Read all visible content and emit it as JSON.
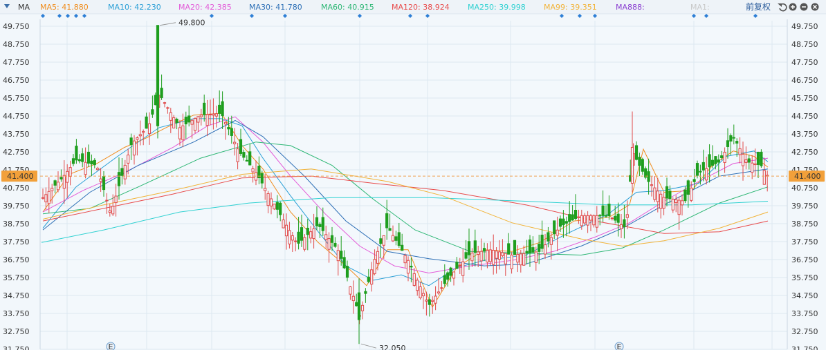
{
  "indicator": {
    "label": "MA",
    "icon": "ma-dropdown-icon"
  },
  "toolbar": {
    "adjust_label": "前复权",
    "icons": [
      "undo-icon",
      "zoom-in-icon",
      "zoom-out-icon",
      "close-icon"
    ]
  },
  "ma_legend": [
    {
      "text": "MA5: 41.880",
      "color": "#f08c1c"
    },
    {
      "text": "MA10: 42.230",
      "color": "#2a9fd6"
    },
    {
      "text": "MA20: 42.385",
      "color": "#e35ad8"
    },
    {
      "text": "MA30: 41.780",
      "color": "#2d6fb6"
    },
    {
      "text": "MA60: 40.915",
      "color": "#2bb673"
    },
    {
      "text": "MA120: 38.924",
      "color": "#e84a4a"
    },
    {
      "text": "MA250: 39.998",
      "color": "#2fd1d1"
    },
    {
      "text": "MA99: 39.351",
      "color": "#f2b338"
    },
    {
      "text": "MA888:",
      "color": "#8a3fd1"
    },
    {
      "text": "MA1:",
      "color": "#c8c8c8"
    }
  ],
  "chart_data": {
    "type": "candlestick",
    "ylim": [
      31.75,
      49.75
    ],
    "y_ticks": [
      "49.750",
      "48.750",
      "47.750",
      "46.750",
      "45.750",
      "44.750",
      "43.750",
      "42.750",
      "41.750",
      "40.750",
      "39.750",
      "38.750",
      "37.750",
      "36.750",
      "35.750",
      "34.750",
      "33.750",
      "32.750",
      "31.750"
    ],
    "current_price": "41.400",
    "annotations": [
      {
        "text": "49.800",
        "value": 49.8
      },
      {
        "text": "32.050",
        "value": 32.05
      }
    ],
    "event_markers": [
      "E",
      "E"
    ],
    "up_color": "#e04848",
    "down_color": "#1e9e1e",
    "series": [
      {
        "name": "MA5",
        "color": "#f08c1c"
      },
      {
        "name": "MA10",
        "color": "#2a9fd6"
      },
      {
        "name": "MA20",
        "color": "#e35ad8"
      },
      {
        "name": "MA30",
        "color": "#2d6fb6"
      },
      {
        "name": "MA60",
        "color": "#2bb673"
      },
      {
        "name": "MA120",
        "color": "#e84a4a"
      },
      {
        "name": "MA250",
        "color": "#2fd1d1"
      },
      {
        "name": "MA99",
        "color": "#f2b338"
      }
    ]
  }
}
